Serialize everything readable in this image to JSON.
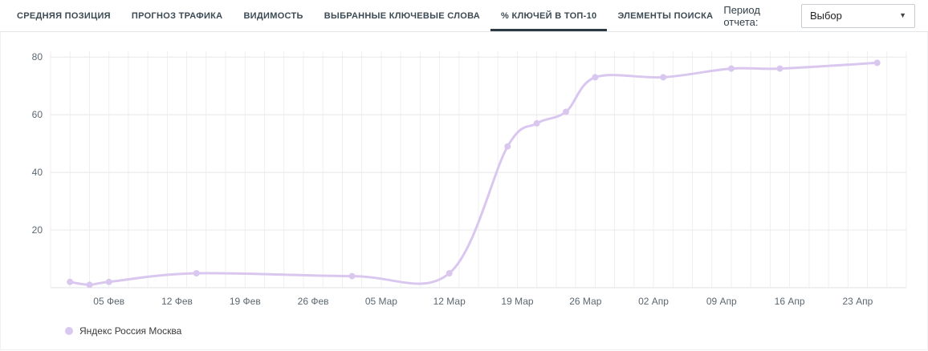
{
  "header": {
    "tabs": [
      {
        "label": "СРЕДНЯЯ ПОЗИЦИЯ",
        "slug": "avg-position",
        "active": false
      },
      {
        "label": "ПРОГНОЗ ТРАФИКА",
        "slug": "traffic-forecast",
        "active": false
      },
      {
        "label": "ВИДИМОСТЬ",
        "slug": "visibility",
        "active": false
      },
      {
        "label": "ВЫБРАННЫЕ КЛЮЧЕВЫЕ СЛОВА",
        "slug": "selected-keywords",
        "active": false
      },
      {
        "label": "% КЛЮЧЕЙ В ТОП-10",
        "slug": "keys-in-top10",
        "active": true
      },
      {
        "label": "ЭЛЕМЕНТЫ ПОИСКА",
        "slug": "search-elements",
        "active": false
      }
    ],
    "report_period_label": "Период отчета:",
    "report_period_value": "Выбор"
  },
  "colors": {
    "line": "#d9c7f0",
    "grid_minor": "#efefef",
    "grid_major": "#e8e8e8",
    "axis_baseline": "#dfe2e4",
    "axis_text": "#5c6770",
    "active_tab_underline": "#2d3a43"
  },
  "chart_data": {
    "type": "line",
    "title": "",
    "xlabel": "",
    "ylabel": "",
    "grid": true,
    "legend_position": "bottom-left",
    "x_domain": [
      -2,
      86
    ],
    "y_domain": [
      0,
      82
    ],
    "y_ticks": [
      20,
      40,
      60,
      80
    ],
    "x_ticks": [
      {
        "day": 4,
        "label": "05 Фев"
      },
      {
        "day": 11,
        "label": "12 Фев"
      },
      {
        "day": 18,
        "label": "19 Фев"
      },
      {
        "day": 25,
        "label": "26 Фев"
      },
      {
        "day": 32,
        "label": "05 Мар"
      },
      {
        "day": 39,
        "label": "12 Мар"
      },
      {
        "day": 46,
        "label": "19 Мар"
      },
      {
        "day": 53,
        "label": "26 Мар"
      },
      {
        "day": 60,
        "label": "02 Апр"
      },
      {
        "day": 67,
        "label": "09 Апр"
      },
      {
        "day": 74,
        "label": "16 Апр"
      },
      {
        "day": 81,
        "label": "23 Апр"
      }
    ],
    "series": [
      {
        "name": "Яндекс Россия Москва",
        "color": "#d9c7f0",
        "points": [
          {
            "date": "01 Фев",
            "day": 0,
            "value": 2
          },
          {
            "date": "03 Фев",
            "day": 2,
            "value": 1
          },
          {
            "date": "05 Фев",
            "day": 4,
            "value": 2
          },
          {
            "date": "14 Фев",
            "day": 13,
            "value": 5
          },
          {
            "date": "02 Мар",
            "day": 29,
            "value": 4
          },
          {
            "date": "12 Мар",
            "day": 39,
            "value": 5
          },
          {
            "date": "18 Мар",
            "day": 45,
            "value": 49
          },
          {
            "date": "21 Мар",
            "day": 48,
            "value": 57
          },
          {
            "date": "24 Мар",
            "day": 51,
            "value": 61
          },
          {
            "date": "27 Мар",
            "day": 54,
            "value": 73
          },
          {
            "date": "03 Апр",
            "day": 61,
            "value": 73
          },
          {
            "date": "10 Апр",
            "day": 68,
            "value": 76
          },
          {
            "date": "15 Апр",
            "day": 73,
            "value": 76
          },
          {
            "date": "25 Апр",
            "day": 83,
            "value": 78
          }
        ]
      }
    ]
  }
}
